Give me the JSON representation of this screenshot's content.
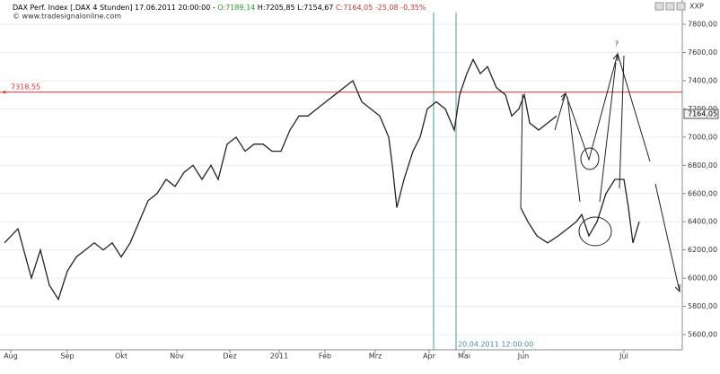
{
  "chart_data": {
    "type": "line",
    "header": {
      "title": "DAX Perf. Index [.DAX  4 Stunden] 17.06.2011 20:00:00 -",
      "open": "O:7189,14",
      "high": "H:7205,85",
      "low": "L:7154,67",
      "close": "C:7164,05",
      "change": "-25,08",
      "change_pct": "-0,35%"
    },
    "source": "© www.tradesignalonline.com",
    "axis_label": "XXP",
    "annotation": "?",
    "xlim": [
      0,
      760
    ],
    "ylim": [
      5492,
      7883
    ],
    "xticks": [
      {
        "value": 12,
        "label": "Aug"
      },
      {
        "value": 75,
        "label": "Sep"
      },
      {
        "value": 135,
        "label": "Okt"
      },
      {
        "value": 197,
        "label": "Nov"
      },
      {
        "value": 256,
        "label": "Dez"
      },
      {
        "value": 311,
        "label": "2011"
      },
      {
        "value": 362,
        "label": "Feb"
      },
      {
        "value": 418,
        "label": "Mrz"
      },
      {
        "value": 478,
        "label": "Apr"
      },
      {
        "value": 517,
        "label": "Mai"
      },
      {
        "value": 583,
        "label": "Jun"
      },
      {
        "value": 695,
        "label": "Jul"
      }
    ],
    "yticks": [
      {
        "value": 5600,
        "label": "5600,00"
      },
      {
        "value": 5800,
        "label": "5800,00"
      },
      {
        "value": 6000,
        "label": "6000,00"
      },
      {
        "value": 6200,
        "label": "6200,00"
      },
      {
        "value": 6400,
        "label": "6400,00"
      },
      {
        "value": 6600,
        "label": "6600,00"
      },
      {
        "value": 6800,
        "label": "6800,00"
      },
      {
        "value": 7000,
        "label": "7000,00"
      },
      {
        "value": 7200,
        "label": "7200,00"
      },
      {
        "value": 7400,
        "label": "7400,00"
      },
      {
        "value": 7600,
        "label": "7600,00"
      },
      {
        "value": 7800,
        "label": "7800,00"
      }
    ],
    "grid": true,
    "hline": {
      "value": 7318.55,
      "label": "7318,55",
      "color": "#d03030"
    },
    "last_price": {
      "value": 7164.05,
      "label": "7164,05"
    },
    "vlines": [
      {
        "x": 483
      },
      {
        "x": 508,
        "label": "20.04.2011 12:00:00"
      }
    ],
    "series": [
      {
        "color": "#222222",
        "x": [
          5,
          20,
          35,
          45,
          55,
          65,
          75,
          85,
          95,
          105,
          115,
          125,
          135,
          145,
          155,
          165,
          175,
          185,
          195,
          205,
          215,
          225,
          235,
          243,
          253,
          263,
          273,
          283,
          293,
          303,
          313,
          323,
          333,
          343,
          353,
          363,
          373,
          383,
          393,
          403,
          413,
          423,
          433,
          437,
          442,
          450,
          460,
          468,
          476,
          486,
          496,
          506,
          512,
          520,
          527,
          535,
          543,
          553,
          563,
          570,
          578,
          584,
          590,
          600,
          610,
          620
        ],
        "values": [
          6250,
          6350,
          6000,
          6200,
          5950,
          5850,
          6050,
          6150,
          6200,
          6250,
          6200,
          6250,
          6150,
          6250,
          6400,
          6550,
          6600,
          6700,
          6650,
          6750,
          6800,
          6700,
          6800,
          6700,
          6950,
          7000,
          6900,
          6950,
          6950,
          6900,
          6900,
          7050,
          7150,
          7150,
          7200,
          7250,
          7300,
          7350,
          7400,
          7250,
          7200,
          7150,
          7000,
          6800,
          6500,
          6700,
          6900,
          7000,
          7200,
          7250,
          7200,
          7050,
          7300,
          7450,
          7550,
          7450,
          7500,
          7350,
          7300,
          7150,
          7200,
          7300,
          7100,
          7050,
          7100,
          7150
        ]
      },
      {
        "color": "#222222",
        "x": [
          580,
          588,
          598,
          610,
          622,
          632,
          642,
          648,
          656,
          665,
          675,
          685,
          695,
          700,
          705,
          712
        ],
        "values": [
          6500,
          6400,
          6300,
          6250,
          6300,
          6350,
          6400,
          6450,
          6300,
          6400,
          6600,
          6700,
          6700,
          6500,
          6250,
          6400
        ]
      }
    ]
  }
}
